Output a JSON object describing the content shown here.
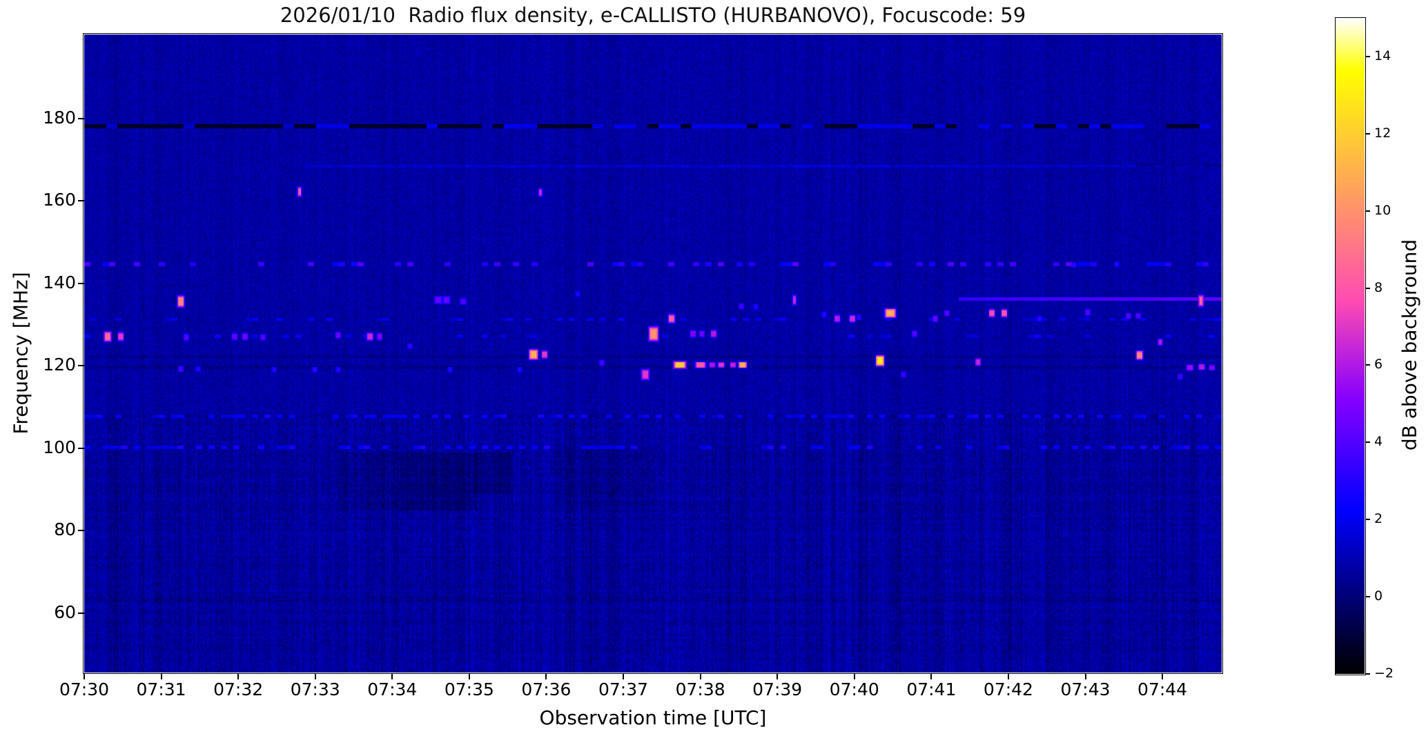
{
  "figure": {
    "title": "2026/01/10  Radio flux density, e-CALLISTO (HURBANOVO), Focuscode: 59"
  },
  "chart_data": {
    "type": "heatmap",
    "title": "2026/01/10  Radio flux density, e-CALLISTO (HURBANOVO), Focuscode: 59",
    "xlabel": "Observation time [UTC]",
    "ylabel": "Frequency [MHz]",
    "colorbar_label": "dB above background",
    "x_tick_labels": [
      "07:30",
      "07:31",
      "07:32",
      "07:33",
      "07:34",
      "07:35",
      "07:36",
      "07:37",
      "07:38",
      "07:39",
      "07:40",
      "07:41",
      "07:42",
      "07:43",
      "07:44"
    ],
    "x_start_time": "07:30",
    "x_range_minutes": [
      0,
      14.77
    ],
    "y_tick_values": [
      180,
      160,
      140,
      120,
      100,
      80,
      60
    ],
    "y_tick_labels": [
      "180",
      "160",
      "140",
      "120",
      "100",
      "80",
      "60"
    ],
    "y_range_mhz": [
      45.58,
      200.42
    ],
    "colorbar_tick_values": [
      14,
      12,
      10,
      8,
      6,
      4,
      2,
      0,
      -2
    ],
    "colorbar_tick_labels": [
      "14",
      "12",
      "10",
      "8",
      "6",
      "4",
      "2",
      "0",
      "−2"
    ],
    "colorbar_range_db": [
      -2,
      15
    ],
    "colormap": "gnuplot2",
    "grid": false,
    "background_level_db": 0.72,
    "colors": {
      "figure_background": "#ffffff",
      "spectrogram_background": "#0000a3",
      "dark_band": "#000033",
      "bright_blue": "#0000f0",
      "magenta": "#b01ae6",
      "pink": "#ff56a9",
      "orange": "#ffce31",
      "peak_white": "#ffffff"
    },
    "horizontal_lines": [
      {
        "f": 178.2,
        "thickness_px": 4,
        "style": "mixed-dashed",
        "t0": 0,
        "t1": 14.77,
        "dark_db": -1.3,
        "bright_db": 1.9
      },
      {
        "f": 168.6,
        "thickness_px": 2,
        "style": "faint-blue",
        "t0": 2.85,
        "t1": 14.77,
        "db": 1.0
      },
      {
        "f": 168.6,
        "thickness_px": 3,
        "style": "dark",
        "t0": 13.65,
        "t1": 14.77,
        "db": -1.0
      },
      {
        "f": 144.7,
        "thickness_px": 4,
        "style": "dotted-blue",
        "t0": 0,
        "t1": 14.77,
        "db": 2.3,
        "duty": 0.3
      },
      {
        "f": 136.3,
        "thickness_px": 3,
        "style": "solid-blue",
        "t0": 11.35,
        "t1": 14.77,
        "db": 2.6
      },
      {
        "f": 131.4,
        "thickness_px": 2,
        "style": "dotted-blue",
        "t0": 0,
        "t1": 14.77,
        "db": 1.2,
        "duty": 0.2
      },
      {
        "f": 127.2,
        "thickness_px": 3,
        "style": "dotted-blue",
        "t0": 0,
        "t1": 14.77,
        "db": 1.3,
        "duty": 0.18
      },
      {
        "f": 122.4,
        "thickness_px": 2,
        "style": "dark",
        "t0": 0,
        "t1": 14.77,
        "db": -0.5
      },
      {
        "f": 119.8,
        "thickness_px": 3,
        "style": "dark",
        "t0": 0,
        "t1": 14.77,
        "db": -0.55
      },
      {
        "f": 107.9,
        "thickness_px": 3,
        "style": "dotted-blue",
        "t0": 0,
        "t1": 14.77,
        "db": 1.4,
        "duty": 0.45
      },
      {
        "f": 100.3,
        "thickness_px": 3,
        "style": "dotted-blue",
        "t0": 0,
        "t1": 14.77,
        "db": 1.5,
        "duty": 0.45
      },
      {
        "f": 63.5,
        "thickness_px": 6,
        "style": "dark",
        "t0": 0,
        "t1": 14.77,
        "db": -0.3
      }
    ],
    "dark_patches": [
      {
        "t0": 3.3,
        "t1": 4.1,
        "f0": 85,
        "f1": 99,
        "ddb": -0.3
      },
      {
        "t0": 4.1,
        "t1": 5.1,
        "f0": 85,
        "f1": 99,
        "ddb": -0.55
      },
      {
        "t0": 5.05,
        "t1": 5.55,
        "f0": 89,
        "f1": 99,
        "ddb": -0.45
      },
      {
        "t0": 6.1,
        "t1": 7.4,
        "f0": 86,
        "f1": 100,
        "ddb": -0.2
      }
    ],
    "rfi_blobs_format": [
      "t_minutes_after_0730",
      "freq_mhz",
      "peak_db",
      "width_px",
      "height_px"
    ],
    "rfi_blobs": [
      [
        0.3,
        127.2,
        8.5,
        9,
        13
      ],
      [
        0.47,
        127.2,
        7,
        7,
        11
      ],
      [
        1.25,
        135.7,
        9.5,
        8,
        15
      ],
      [
        1.32,
        127.0,
        4,
        6,
        9
      ],
      [
        1.95,
        127.2,
        4.2,
        7,
        9
      ],
      [
        2.08,
        127.2,
        4.6,
        7,
        9
      ],
      [
        2.32,
        127.0,
        4,
        6,
        8
      ],
      [
        2.79,
        162.4,
        8,
        4,
        12
      ],
      [
        3.29,
        127.5,
        4.5,
        6,
        8
      ],
      [
        3.71,
        127.2,
        6.5,
        8,
        10
      ],
      [
        3.83,
        127.2,
        5,
        6,
        9
      ],
      [
        4.59,
        136.0,
        4.4,
        10,
        10
      ],
      [
        4.7,
        136.0,
        4.4,
        9,
        10
      ],
      [
        4.92,
        135.7,
        3.8,
        8,
        8
      ],
      [
        5.83,
        122.9,
        11,
        11,
        13
      ],
      [
        5.92,
        162.2,
        6.5,
        4,
        10
      ],
      [
        5.97,
        122.9,
        7,
        7,
        10
      ],
      [
        1.25,
        119.3,
        3.6,
        6,
        7
      ],
      [
        1.47,
        119.3,
        3.3,
        5,
        6
      ],
      [
        2.46,
        119.2,
        3.3,
        5,
        6
      ],
      [
        2.99,
        119.2,
        3.5,
        5,
        6
      ],
      [
        3.29,
        119.2,
        3.3,
        5,
        6
      ],
      [
        4.23,
        124.9,
        3.6,
        5,
        6
      ],
      [
        4.75,
        119.2,
        3.1,
        5,
        6
      ],
      [
        5.65,
        119.2,
        3.1,
        5,
        6
      ],
      [
        6.72,
        120.9,
        3.7,
        6,
        7
      ],
      [
        7.28,
        117.9,
        7,
        10,
        14
      ],
      [
        7.39,
        127.8,
        10,
        12,
        19
      ],
      [
        7.62,
        131.6,
        8,
        8,
        11
      ],
      [
        7.9,
        127.9,
        5,
        7,
        9
      ],
      [
        8.02,
        127.9,
        4.6,
        6,
        8
      ],
      [
        8.17,
        127.9,
        6,
        7,
        9
      ],
      [
        7.73,
        120.4,
        12,
        16,
        8
      ],
      [
        8.0,
        120.4,
        8,
        14,
        7
      ],
      [
        8.15,
        120.4,
        6,
        7,
        6
      ],
      [
        8.27,
        120.4,
        7,
        8,
        6
      ],
      [
        8.42,
        120.4,
        6.5,
        7,
        6
      ],
      [
        8.55,
        120.4,
        11,
        10,
        7
      ],
      [
        9.22,
        136.1,
        6.5,
        4,
        13
      ],
      [
        9.77,
        131.6,
        6,
        7,
        9
      ],
      [
        9.97,
        131.6,
        6.5,
        7,
        9
      ],
      [
        10.33,
        121.4,
        13,
        10,
        13
      ],
      [
        10.46,
        132.8,
        11,
        14,
        11
      ],
      [
        10.78,
        127.9,
        4,
        6,
        8
      ],
      [
        11.05,
        131.6,
        4.5,
        6,
        8
      ],
      [
        11.2,
        132.8,
        4,
        6,
        7
      ],
      [
        11.6,
        121.0,
        6.5,
        6,
        9
      ],
      [
        11.78,
        132.9,
        7.5,
        7,
        10
      ],
      [
        11.94,
        132.9,
        8,
        7,
        10
      ],
      [
        13.03,
        133.1,
        4,
        6,
        8
      ],
      [
        13.56,
        132.2,
        4,
        6,
        7
      ],
      [
        13.68,
        132.2,
        4,
        6,
        7
      ],
      [
        13.97,
        125.9,
        6,
        5,
        8
      ],
      [
        13.7,
        122.6,
        9.5,
        8,
        11
      ],
      [
        14.35,
        119.7,
        5.5,
        9,
        7
      ],
      [
        14.51,
        119.9,
        6,
        8,
        7
      ],
      [
        14.64,
        119.6,
        5,
        7,
        6
      ],
      [
        14.23,
        117.5,
        3.5,
        6,
        7
      ],
      [
        14.5,
        135.9,
        8.5,
        5,
        15
      ],
      [
        10.63,
        117.9,
        3.5,
        6,
        7
      ],
      [
        8.53,
        134.6,
        3.5,
        6,
        7
      ],
      [
        8.72,
        134.3,
        3.2,
        5,
        6
      ],
      [
        6.4,
        137.5,
        3,
        5,
        6
      ],
      [
        12.4,
        131.5,
        3.4,
        5,
        6
      ],
      [
        9.6,
        132.5,
        3.3,
        5,
        6
      ],
      [
        10.05,
        131.8,
        3.5,
        5,
        6
      ],
      [
        12.85,
        144.6,
        3.5,
        5,
        6
      ],
      [
        13.4,
        144.8,
        3.2,
        5,
        6
      ]
    ]
  }
}
